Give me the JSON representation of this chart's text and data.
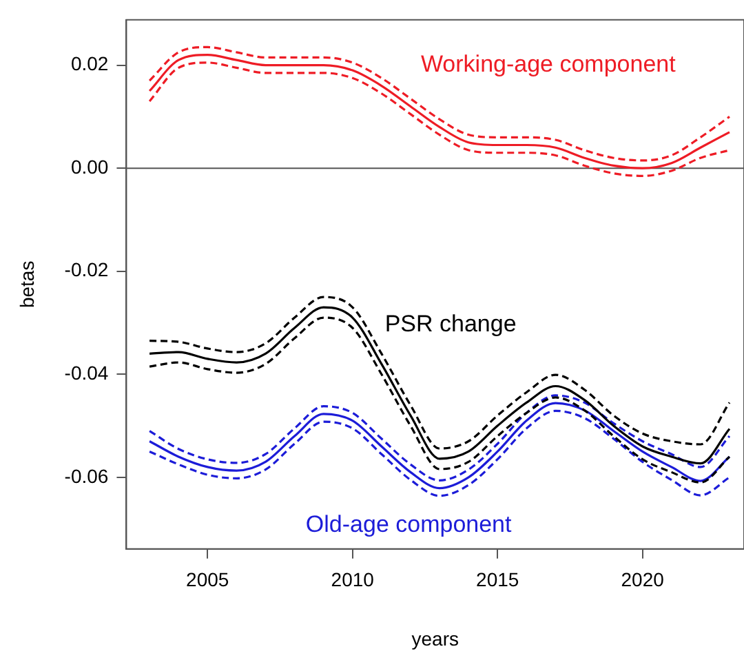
{
  "chart_data": {
    "type": "line",
    "xlabel": "years",
    "ylabel": "betas",
    "x": [
      2003,
      2004,
      2005,
      2006,
      2007,
      2008,
      2009,
      2010,
      2011,
      2012,
      2013,
      2014,
      2015,
      2016,
      2017,
      2018,
      2019,
      2020,
      2021,
      2022,
      2023
    ],
    "series": [
      {
        "name": "Working-age component",
        "color": "#ee1c25",
        "line_style": "solid",
        "values": [
          0.015,
          0.021,
          0.022,
          0.021,
          0.02,
          0.02,
          0.02,
          0.019,
          0.016,
          0.012,
          0.008,
          0.005,
          0.0045,
          0.0045,
          0.004,
          0.002,
          0.0005,
          0.0,
          0.001,
          0.004,
          0.007
        ]
      },
      {
        "color": "#ee1c25",
        "line_style": "dashed",
        "values": [
          0.013,
          0.0195,
          0.0205,
          0.0195,
          0.0185,
          0.0185,
          0.0185,
          0.0175,
          0.0145,
          0.0105,
          0.0065,
          0.0035,
          0.003,
          0.003,
          0.0025,
          0.0005,
          -0.001,
          -0.0015,
          -0.0005,
          0.002,
          0.0035
        ]
      },
      {
        "color": "#ee1c25",
        "line_style": "dashed",
        "values": [
          0.017,
          0.0225,
          0.0235,
          0.0225,
          0.0215,
          0.0215,
          0.0215,
          0.0205,
          0.0175,
          0.0135,
          0.0095,
          0.0065,
          0.006,
          0.006,
          0.0055,
          0.0035,
          0.002,
          0.0015,
          0.0025,
          0.006,
          0.01
        ]
      },
      {
        "name": "PSR change",
        "color": "#000000",
        "line_style": "solid",
        "values": [
          -0.036,
          -0.0357,
          -0.037,
          -0.0377,
          -0.036,
          -0.031,
          -0.027,
          -0.029,
          -0.038,
          -0.048,
          -0.0564,
          -0.055,
          -0.05,
          -0.0455,
          -0.0423,
          -0.045,
          -0.05,
          -0.054,
          -0.056,
          -0.0573,
          -0.0506
        ]
      },
      {
        "color": "#000000",
        "line_style": "dashed",
        "values": [
          -0.0385,
          -0.0377,
          -0.039,
          -0.0397,
          -0.038,
          -0.033,
          -0.029,
          -0.031,
          -0.04,
          -0.05,
          -0.0584,
          -0.057,
          -0.052,
          -0.0475,
          -0.0445,
          -0.047,
          -0.052,
          -0.0565,
          -0.059,
          -0.061,
          -0.056
        ]
      },
      {
        "color": "#000000",
        "line_style": "dashed",
        "values": [
          -0.0335,
          -0.0337,
          -0.035,
          -0.0357,
          -0.034,
          -0.029,
          -0.025,
          -0.027,
          -0.036,
          -0.046,
          -0.0544,
          -0.053,
          -0.048,
          -0.0435,
          -0.0401,
          -0.043,
          -0.048,
          -0.0515,
          -0.053,
          -0.0536,
          -0.0455
        ]
      },
      {
        "name": "Old-age component",
        "color": "#1c1cd8",
        "line_style": "solid",
        "values": [
          -0.053,
          -0.056,
          -0.058,
          -0.0587,
          -0.057,
          -0.052,
          -0.0477,
          -0.049,
          -0.054,
          -0.059,
          -0.0621,
          -0.06,
          -0.055,
          -0.049,
          -0.0456,
          -0.047,
          -0.051,
          -0.055,
          -0.058,
          -0.0607,
          -0.056
        ]
      },
      {
        "color": "#1c1cd8",
        "line_style": "dashed",
        "values": [
          -0.055,
          -0.0575,
          -0.0595,
          -0.0602,
          -0.0585,
          -0.0535,
          -0.0492,
          -0.0505,
          -0.0555,
          -0.0605,
          -0.0636,
          -0.0615,
          -0.0565,
          -0.0505,
          -0.0471,
          -0.0485,
          -0.0525,
          -0.057,
          -0.0605,
          -0.0635,
          -0.06
        ]
      },
      {
        "color": "#1c1cd8",
        "line_style": "dashed",
        "values": [
          -0.051,
          -0.0545,
          -0.0565,
          -0.0572,
          -0.0555,
          -0.0505,
          -0.0462,
          -0.0475,
          -0.0525,
          -0.0575,
          -0.0606,
          -0.0585,
          -0.0535,
          -0.0475,
          -0.0441,
          -0.0455,
          -0.0495,
          -0.053,
          -0.0555,
          -0.058,
          -0.052
        ]
      }
    ],
    "ref_lines": [
      {
        "axis": "y",
        "value": 0,
        "color": "#555555"
      }
    ],
    "xlim": [
      2002.2,
      2023.5
    ],
    "xticks": [
      2005,
      2010,
      2015,
      2020
    ],
    "ylim": [
      -0.0739,
      0.0288
    ],
    "yticks": [
      {
        "value": -0.06,
        "label": "-0.06"
      },
      {
        "value": -0.04,
        "label": "-0.04"
      },
      {
        "value": -0.02,
        "label": "-0.02"
      },
      {
        "value": 0,
        "label": "0.00"
      },
      {
        "value": 0.02,
        "label": "0.02"
      }
    ],
    "grid": false,
    "legend": false,
    "marker": "none"
  }
}
